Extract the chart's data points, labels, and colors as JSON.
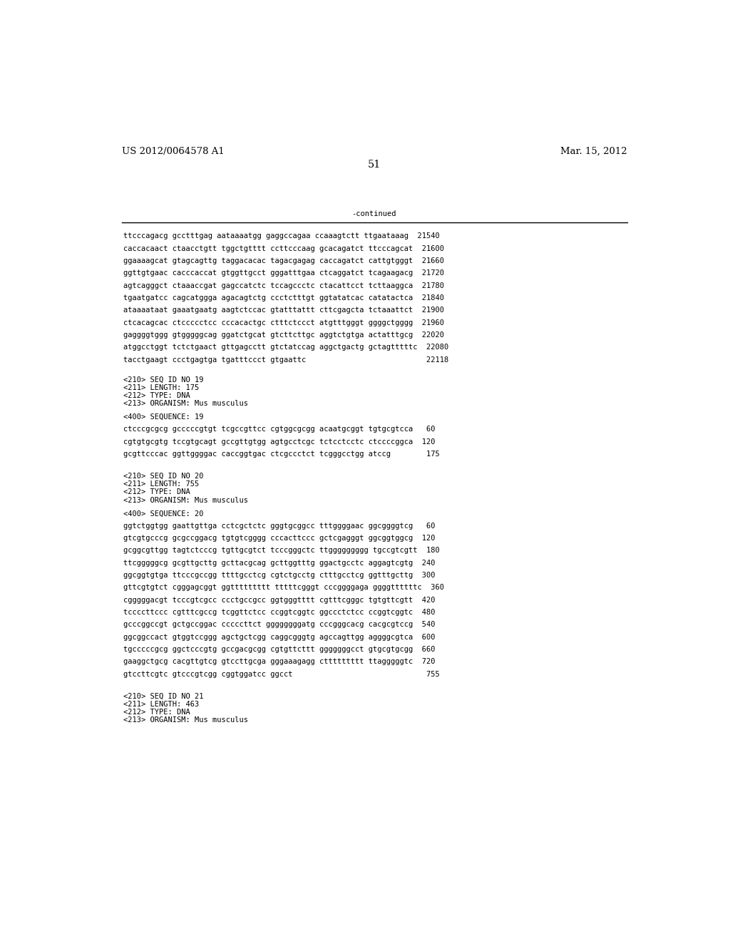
{
  "header_left": "US 2012/0064578 A1",
  "header_right": "Mar. 15, 2012",
  "page_number": "51",
  "continued_label": "-continued",
  "background_color": "#ffffff",
  "text_color": "#000000",
  "font_size_header": 9.5,
  "font_size_page": 10.5,
  "font_size_body": 7.5,
  "body_lines": [
    "ttcccagacg gcctttgag aataaaatgg gaggccagaa ccaaagtctt ttgaataaag  21540",
    "caccacaact ctaacctgtt tggctgtttt ccttcccaag gcacagatct ttcccagcat  21600",
    "ggaaaagcat gtagcagttg taggacacac tagacgagag caccagatct cattgtgggt  21660",
    "ggttgtgaac cacccaccat gtggttgcct gggatttgaa ctcaggatct tcagaagacg  21720",
    "agtcagggct ctaaaccgat gagccatctc tccagccctc ctacattcct tcttaaggca  21780",
    "tgaatgatcc cagcatggga agacagtctg ccctctttgt ggtatatcac catatactca  21840",
    "ataaaataat gaaatgaatg aagtctccac gtatttattt cttcgagcta tctaaattct  21900",
    "ctcacagcac ctccccctcc cccacactgc ctttctccct atgtttgggt ggggctgggg  21960",
    "gaggggtggg gtgggggcag ggatctgcat gtcttcttgc aggtctgtga actatttgcg  22020",
    "atggcctggt tctctgaact gttgagcctt gtctatccag aggctgactg gctagtttttc  22080",
    "tacctgaagt ccctgagtga tgatttccct gtgaattc                           22118"
  ],
  "seq19_meta": [
    "<210> SEQ ID NO 19",
    "<211> LENGTH: 175",
    "<212> TYPE: DNA",
    "<213> ORGANISM: Mus musculus"
  ],
  "seq19_label": "<400> SEQUENCE: 19",
  "seq19_lines": [
    "ctcccgcgcg gcccccgtgt tcgccgttcc cgtggcgcgg acaatgcggt tgtgcgtcca   60",
    "cgtgtgcgtg tccgtgcagt gccgttgtgg agtgcctcgc tctcctcctc ctccccggca  120",
    "gcgttcccac ggttggggac caccggtgac ctcgccctct tcgggcctgg atccg        175"
  ],
  "seq20_meta": [
    "<210> SEQ ID NO 20",
    "<211> LENGTH: 755",
    "<212> TYPE: DNA",
    "<213> ORGANISM: Mus musculus"
  ],
  "seq20_label": "<400> SEQUENCE: 20",
  "seq20_lines": [
    "ggtctggtgg gaattgttga cctcgctctc gggtgcggcc tttggggaac ggcggggtcg   60",
    "gtcgtgcccg gcgccggacg tgtgtcgggg cccacttccc gctcgagggt ggcggtggcg  120",
    "gcggcgttgg tagtctcccg tgttgcgtct tcccgggctc ttggggggggg tgccgtcgtt  180",
    "ttcgggggcg gcgttgcttg gcttacgcag gcttggtttg ggactgcctc aggagtcgtg  240",
    "ggcggtgtga ttcccgccgg ttttgcctcg cgtctgcctg ctttgcctcg ggtttgcttg  300",
    "gttcgtgtct cgggagcggt ggttttttttt tttttcgggt cccggggaga ggggttttttc  360",
    "cgggggacgt tcccgtcgcc ccctgccgcc ggtgggtttt cgtttcgggc tgtgttcgtt  420",
    "tccccttccc cgtttcgccg tcggttctcc ccggtcggtc ggccctctcc ccggtcggtc  480",
    "gcccggccgt gctgccggac cccccttct ggggggggatg cccgggcacg cacgcgtccg  540",
    "ggcggccact gtggtccggg agctgctcgg caggcgggtg agccagttgg aggggcgtca  600",
    "tgcccccgcg ggctcccgtg gccgacgcgg cgtgttcttt gggggggcct gtgcgtgcgg  660",
    "gaaggctgcg cacgttgtcg gtccttgcga gggaaagagg cttttttttt ttagggggtc  720",
    "gtccttcgtc gtcccgtcgg cggtggatcc ggcct                              755"
  ],
  "seq21_meta": [
    "<210> SEQ ID NO 21",
    "<211> LENGTH: 463",
    "<212> TYPE: DNA",
    "<213> ORGANISM: Mus musculus"
  ]
}
